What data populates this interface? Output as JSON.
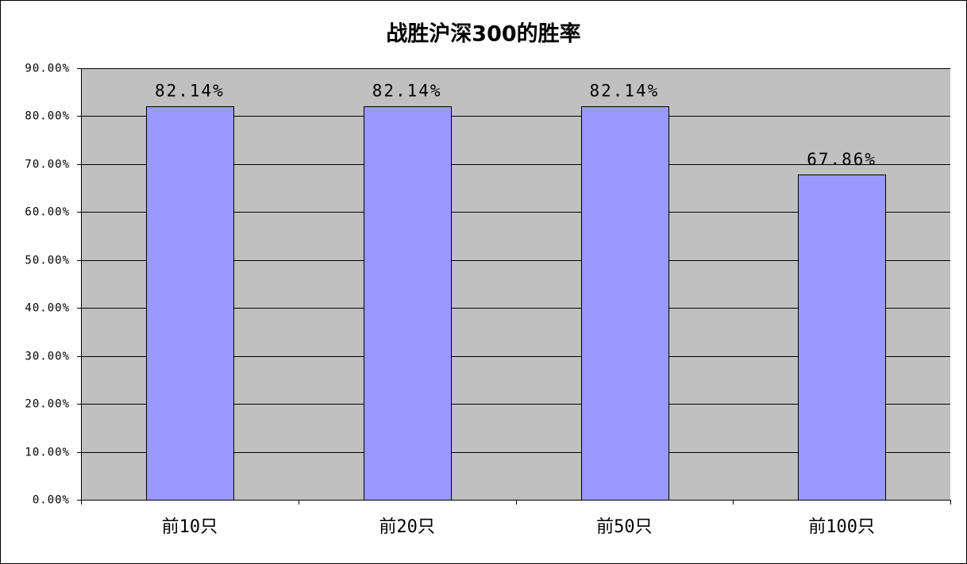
{
  "chart_data": {
    "type": "bar",
    "title": "战胜沪深300的胜率",
    "categories": [
      "前10只",
      "前20只",
      "前50只",
      "前100只"
    ],
    "values": [
      82.14,
      82.14,
      82.14,
      67.86
    ],
    "value_labels": [
      "82.14%",
      "82.14%",
      "82.14%",
      "67.86%"
    ],
    "ylim": [
      0,
      90
    ],
    "yticks": [
      0,
      10,
      20,
      30,
      40,
      50,
      60,
      70,
      80,
      90
    ],
    "ytick_labels": [
      "0.00%",
      "10.00%",
      "20.00%",
      "30.00%",
      "40.00%",
      "50.00%",
      "60.00%",
      "70.00%",
      "80.00%",
      "90.00%"
    ],
    "grid": true,
    "show_legend": false,
    "colors": {
      "bar": "#9999FF",
      "bar_edge": "#000000",
      "plot_background": "#C0C0C0",
      "gridline": "#000000",
      "axis": "#000000"
    }
  }
}
